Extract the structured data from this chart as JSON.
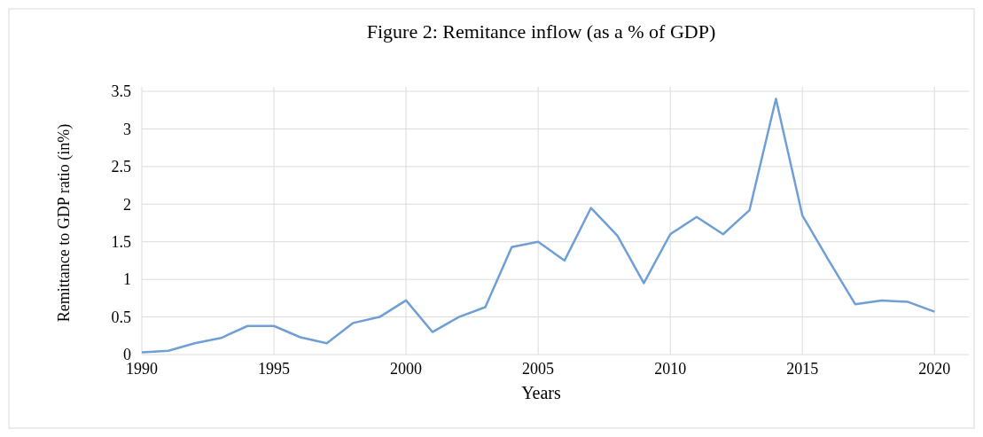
{
  "chart_data": {
    "type": "line",
    "title": "Figure 2: Remitance inflow (as a % of GDP)",
    "xlabel": "Years",
    "ylabel": "Remittance to GDP ratio (in%)",
    "x": [
      1990,
      1991,
      1992,
      1993,
      1994,
      1995,
      1996,
      1997,
      1998,
      1999,
      2000,
      2001,
      2002,
      2003,
      2004,
      2005,
      2006,
      2007,
      2008,
      2009,
      2010,
      2011,
      2012,
      2013,
      2014,
      2015,
      2016,
      2017,
      2018,
      2019,
      2020
    ],
    "series": [
      {
        "color": "#6f9fd4",
        "values": [
          0.03,
          0.05,
          0.15,
          0.22,
          0.38,
          0.38,
          0.23,
          0.15,
          0.42,
          0.5,
          0.72,
          0.3,
          0.5,
          0.63,
          1.43,
          1.5,
          1.25,
          1.95,
          1.58,
          0.95,
          1.6,
          1.83,
          1.6,
          1.92,
          3.4,
          1.85,
          1.25,
          0.67,
          0.72,
          0.7,
          0.57
        ]
      }
    ],
    "xlim": [
      1990,
      2021.3
    ],
    "xticks": [
      1990,
      1995,
      2000,
      2005,
      2010,
      2015,
      2020
    ],
    "ylim": [
      0,
      3.5
    ],
    "yticks": [
      0,
      0.5,
      1,
      1.5,
      2,
      2.5,
      3,
      3.5
    ],
    "grid": true,
    "marker": "none",
    "line_style": "solid"
  }
}
